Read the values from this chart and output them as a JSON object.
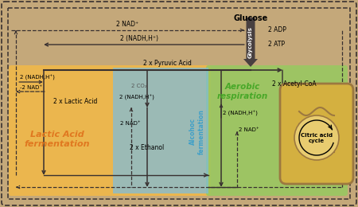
{
  "bg_color": "#c4a87a",
  "orange_color": "#f0b84a",
  "blue_color": "#80bcd8",
  "green_color": "#98c860",
  "arrow_color": "#383030",
  "dashed_color": "#383030",
  "glycolysis_color": "#484040",
  "lactic_label_color": "#e07820",
  "alc_label_color": "#40a0c8",
  "aerobic_label_color": "#48a828",
  "mito_outer_color": "#d4b040",
  "mito_inner_color": "#e8cc70",
  "mito_brown": "#9c7840",
  "text_color": "#282020",
  "glucose_text": "Glucose",
  "glycolysis_text": "Glycolysis",
  "nad_top": "2 NAD⁺",
  "adp_text": "2 ADP",
  "nadh_top": "2 (NADH,H⁺)",
  "atp_text": "2 ATP",
  "pyruvic_text": "2 x Pyruvic Acid",
  "nadh_lactic": "2 (NADH,H⁺)",
  "nad_lactic": "-2 NAD⁺",
  "lactic_acid_text": "2 x Lactic Acid",
  "co2_text": "2 CO₂",
  "nadh_alc": "2 (NADH,H⁺)",
  "nad_alc": "2 NAD⁺",
  "ethanol_text": "2 x Ethanol",
  "nadh_aero": "2 (NADH,H⁺)",
  "nad_aero": "2 NAD⁺",
  "acetyl_text": "2 x Acetyl-CoA",
  "citric_text": "Citric acid\ncycle",
  "lactic_title": "Lactic Acid\nfermentation",
  "alc_title": "Alcohoc\nfermentation",
  "aerobic_title": "Aerobic\nrespiration"
}
